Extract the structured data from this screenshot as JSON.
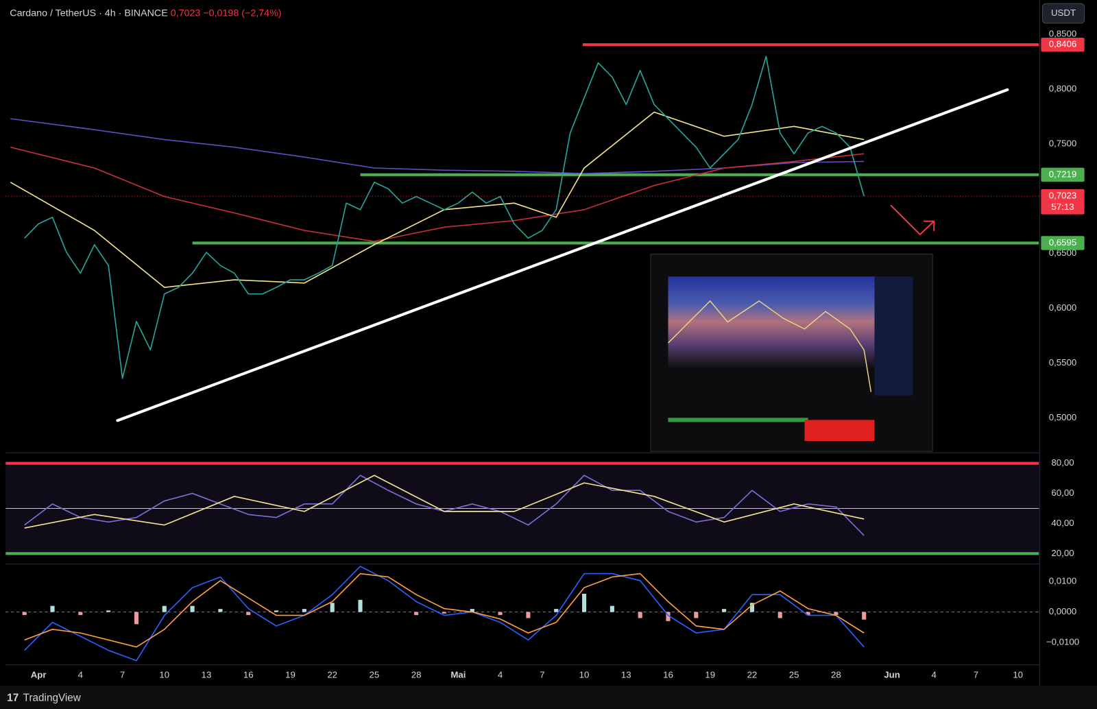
{
  "header": {
    "symbol": "Cardano / TetherUS · 4h · BINANCE",
    "last": "0,7023",
    "change": "−0,0198",
    "change_pct": "(−2,74%)",
    "currency": "USDT"
  },
  "footer": {
    "brand": "TradingView"
  },
  "chart_data": [
    {
      "type": "line",
      "xlim": [
        -1.35,
        72.5
      ],
      "xticks": [
        {
          "value": 1,
          "label": "Apr"
        },
        4,
        7,
        10,
        13,
        16,
        19,
        22,
        25,
        28,
        {
          "value": 31,
          "label": "Mai"
        },
        {
          "value": 34,
          "label": "4"
        },
        {
          "value": 37,
          "label": "7"
        },
        {
          "value": 40,
          "label": "10"
        },
        {
          "value": 43,
          "label": "13"
        },
        {
          "value": 46,
          "label": "16"
        },
        {
          "value": 49,
          "label": "19"
        },
        {
          "value": 52,
          "label": "22"
        },
        {
          "value": 55,
          "label": "25"
        },
        {
          "value": 58,
          "label": "28"
        },
        {
          "value": 62,
          "label": "Jun"
        },
        {
          "value": 65,
          "label": "4"
        },
        {
          "value": 68,
          "label": "7"
        },
        {
          "value": 71,
          "label": "10"
        }
      ],
      "ylim": [
        0.4693,
        0.8634
      ],
      "yticks": [
        {
          "value": 0.85,
          "label": "0,8500"
        },
        {
          "value": 0.8,
          "label": "0,8000"
        },
        {
          "value": 0.75,
          "label": "0,7500"
        },
        {
          "value": 0.65,
          "label": "0,6500"
        },
        {
          "value": 0.6,
          "label": "0,6000"
        },
        {
          "value": 0.55,
          "label": "0,5500"
        },
        {
          "value": 0.5,
          "label": "0,5000"
        }
      ],
      "grid": false,
      "series": [
        {
          "type": "line",
          "color": "#5b4fc4",
          "x": [
            -1,
            5,
            10,
            15,
            20,
            25,
            30,
            35,
            40,
            45,
            50,
            55,
            60
          ],
          "values": [
            0.773,
            0.763,
            0.754,
            0.747,
            0.738,
            0.728,
            0.726,
            0.725,
            0.723,
            0.725,
            0.728,
            0.733,
            0.734
          ]
        },
        {
          "type": "line",
          "color": "#c62f3a",
          "x": [
            -1,
            5,
            10,
            15,
            20,
            25,
            30,
            35,
            40,
            45,
            50,
            55,
            60
          ],
          "values": [
            0.747,
            0.728,
            0.702,
            0.687,
            0.671,
            0.661,
            0.674,
            0.68,
            0.69,
            0.712,
            0.728,
            0.734,
            0.741
          ]
        },
        {
          "type": "line",
          "color": "#f3e58b",
          "x": [
            -1,
            5,
            10,
            15,
            20,
            25,
            30,
            35,
            38,
            40,
            45,
            50,
            55,
            60
          ],
          "values": [
            0.715,
            0.671,
            0.619,
            0.626,
            0.623,
            0.658,
            0.69,
            0.696,
            0.683,
            0.728,
            0.779,
            0.757,
            0.766,
            0.754
          ]
        },
        {
          "type": "line",
          "color": "#26a69a",
          "x": [
            0,
            1,
            2,
            3,
            4,
            5,
            6,
            7,
            8,
            9,
            10,
            11,
            12,
            13,
            14,
            15,
            16,
            17,
            18,
            19,
            20,
            21,
            22,
            23,
            24,
            25,
            26,
            27,
            28,
            29,
            30,
            31,
            32,
            33,
            34,
            35,
            36,
            37,
            38,
            39,
            40,
            41,
            42,
            43,
            44,
            45,
            46,
            47,
            48,
            49,
            50,
            51,
            52,
            53,
            54,
            55,
            56,
            57,
            58,
            59,
            60
          ],
          "values": [
            0.664,
            0.677,
            0.683,
            0.651,
            0.632,
            0.658,
            0.639,
            0.536,
            0.588,
            0.562,
            0.613,
            0.619,
            0.632,
            0.651,
            0.639,
            0.632,
            0.613,
            0.613,
            0.619,
            0.626,
            0.626,
            0.632,
            0.639,
            0.696,
            0.69,
            0.715,
            0.709,
            0.696,
            0.702,
            0.696,
            0.69,
            0.696,
            0.706,
            0.696,
            0.702,
            0.677,
            0.664,
            0.671,
            0.69,
            0.76,
            0.792,
            0.824,
            0.811,
            0.786,
            0.817,
            0.786,
            0.773,
            0.76,
            0.747,
            0.728,
            0.741,
            0.754,
            0.786,
            0.83,
            0.76,
            0.741,
            0.76,
            0.766,
            0.76,
            0.747,
            0.7023
          ]
        }
      ],
      "trendline": {
        "color": "#ffffff",
        "x": [
          6.65,
          70.25
        ],
        "values": [
          0.4975,
          0.7995
        ]
      },
      "levels": [
        {
          "value": 0.8406,
          "label": "0,8406",
          "color": "#f23645",
          "x_start": 39.9,
          "style": "bold"
        },
        {
          "value": 0.7219,
          "label": "0,7219",
          "color": "#4caf50",
          "x_start": 24,
          "style": "bold"
        },
        {
          "value": 0.6595,
          "label": "0,6595",
          "color": "#4caf50",
          "x_start": 12,
          "style": "bold"
        }
      ],
      "last_price": {
        "value": 0.7023,
        "label": "0,7023",
        "countdown": "57:13",
        "color": "#f23645"
      }
    },
    {
      "type": "line",
      "ylim": [
        13.5,
        85.6
      ],
      "yticks": [
        {
          "value": 80,
          "label": "80,00"
        },
        {
          "value": 60,
          "label": "60,00"
        },
        {
          "value": 40,
          "label": "40,00"
        },
        {
          "value": 20,
          "label": "20,00"
        }
      ],
      "band": {
        "from": 20,
        "to": 80,
        "color": "rgba(126,87,194,0.12)"
      },
      "levels": [
        {
          "value": 80,
          "color": "#f23645",
          "style": "bold"
        },
        {
          "value": 50,
          "color": "#d8c98a",
          "style": "thin"
        },
        {
          "value": 20,
          "color": "#4caf50",
          "style": "bold"
        }
      ],
      "series": [
        {
          "type": "line",
          "color": "#7e6fd6",
          "x": [
            0,
            2,
            4,
            6,
            8,
            10,
            12,
            14,
            16,
            18,
            20,
            22,
            24,
            26,
            28,
            30,
            32,
            34,
            36,
            38,
            40,
            42,
            44,
            46,
            48,
            50,
            52,
            54,
            56,
            58,
            60
          ],
          "values": [
            39,
            53,
            44,
            41,
            44,
            55,
            60,
            53,
            46,
            44,
            53,
            53,
            72,
            62,
            53,
            48,
            53,
            48,
            39,
            53,
            72,
            62,
            62,
            48,
            41,
            44,
            62,
            48,
            53,
            51,
            32
          ]
        },
        {
          "type": "line",
          "color": "#f3e58b",
          "x": [
            0,
            5,
            10,
            15,
            20,
            25,
            30,
            35,
            40,
            45,
            50,
            55,
            60
          ],
          "values": [
            37,
            46,
            39,
            58,
            48,
            72,
            48,
            48,
            67,
            58,
            41,
            53,
            43
          ]
        }
      ]
    },
    {
      "type": "bar",
      "ylim": [
        -0.0169,
        0.0153
      ],
      "yticks": [
        {
          "value": 0.01,
          "label": "0,0100"
        },
        {
          "value": 0,
          "label": "0,0000"
        },
        {
          "value": -0.01,
          "label": "−0,0100"
        }
      ],
      "levels": [
        {
          "value": 0,
          "color": "#787b86",
          "style": "dashed"
        }
      ],
      "series": [
        {
          "type": "histogram",
          "color_up": "#b2dfdb",
          "color_down": "#ef9a9a",
          "x": [
            0,
            2,
            4,
            6,
            8,
            10,
            12,
            14,
            16,
            18,
            20,
            22,
            24,
            26,
            28,
            30,
            32,
            34,
            36,
            38,
            40,
            42,
            44,
            46,
            48,
            50,
            52,
            54,
            56,
            58,
            60
          ],
          "values": [
            -0.001,
            0.002,
            -0.001,
            0.0005,
            -0.004,
            0.002,
            0.002,
            0.001,
            -0.001,
            0.0005,
            0.001,
            0.003,
            0.004,
            0,
            -0.001,
            -0.0005,
            0.001,
            -0.001,
            -0.002,
            0.001,
            0.006,
            0.002,
            -0.002,
            -0.003,
            -0.002,
            0.001,
            0.003,
            -0.002,
            -0.001,
            -0.001,
            -0.0025
          ]
        },
        {
          "type": "line",
          "color": "#2962ff",
          "x": [
            0,
            2,
            4,
            6,
            8,
            10,
            12,
            14,
            16,
            18,
            20,
            22,
            24,
            26,
            28,
            30,
            32,
            34,
            36,
            38,
            40,
            42,
            44,
            46,
            48,
            50,
            52,
            54,
            56,
            58,
            60
          ],
          "values": [
            -0.0126,
            -0.0034,
            -0.008,
            -0.0126,
            -0.016,
            -0.0011,
            0.008,
            0.0115,
            0.0011,
            -0.0046,
            -0.0011,
            0.0057,
            0.015,
            0.0103,
            0.0034,
            -0.0011,
            0,
            -0.0034,
            -0.0092,
            -0.0011,
            0.0126,
            0.0126,
            0.0103,
            -0.0011,
            -0.0069,
            -0.0057,
            0.0057,
            0.0057,
            -0.0011,
            -0.0011,
            -0.0115
          ]
        },
        {
          "type": "line",
          "color": "#ff9f43",
          "x": [
            0,
            2,
            4,
            6,
            8,
            10,
            12,
            14,
            16,
            18,
            20,
            22,
            24,
            26,
            28,
            30,
            32,
            34,
            36,
            38,
            40,
            42,
            44,
            46,
            48,
            50,
            52,
            54,
            56,
            58,
            60
          ],
          "values": [
            -0.0092,
            -0.0057,
            -0.0069,
            -0.0092,
            -0.0115,
            -0.0057,
            0.0034,
            0.0103,
            0.0046,
            -0.0011,
            -0.0011,
            0.0034,
            0.0126,
            0.0115,
            0.0057,
            0.0011,
            0,
            -0.0023,
            -0.0069,
            -0.0034,
            0.008,
            0.0115,
            0.0126,
            0.0034,
            -0.0046,
            -0.0057,
            0.0023,
            0.0069,
            0.0011,
            -0.0011,
            -0.0069
          ]
        }
      ]
    }
  ]
}
